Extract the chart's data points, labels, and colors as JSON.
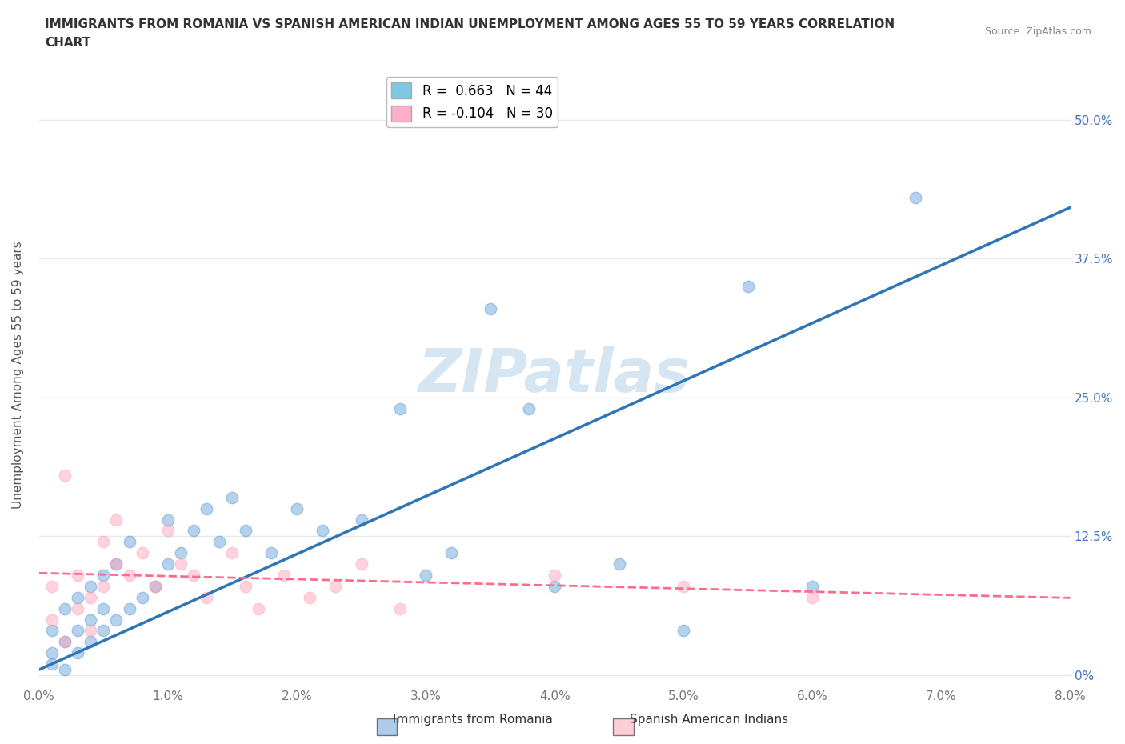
{
  "title_line1": "IMMIGRANTS FROM ROMANIA VS SPANISH AMERICAN INDIAN UNEMPLOYMENT AMONG AGES 55 TO 59 YEARS CORRELATION",
  "title_line2": "CHART",
  "source": "Source: ZipAtlas.com",
  "ylabel": "Unemployment Among Ages 55 to 59 years",
  "ytick_labels_right": [
    "0%",
    "12.5%",
    "25.0%",
    "37.5%",
    "50.0%"
  ],
  "ytick_values": [
    0.0,
    0.125,
    0.25,
    0.375,
    0.5
  ],
  "xlim": [
    0.0,
    0.08
  ],
  "ylim": [
    -0.01,
    0.55
  ],
  "watermark": "ZIPatlas",
  "legend_entries": [
    {
      "label": "R =  0.663   N = 44",
      "color": "#7ec8e3"
    },
    {
      "label": "R = -0.104   N = 30",
      "color": "#ffaec9"
    }
  ],
  "blue_x": [
    0.001,
    0.001,
    0.001,
    0.002,
    0.002,
    0.002,
    0.003,
    0.003,
    0.003,
    0.004,
    0.004,
    0.004,
    0.005,
    0.005,
    0.005,
    0.006,
    0.006,
    0.007,
    0.007,
    0.008,
    0.009,
    0.01,
    0.01,
    0.011,
    0.012,
    0.013,
    0.014,
    0.015,
    0.016,
    0.018,
    0.02,
    0.022,
    0.025,
    0.028,
    0.03,
    0.032,
    0.035,
    0.038,
    0.04,
    0.045,
    0.05,
    0.055,
    0.06,
    0.068
  ],
  "blue_y": [
    0.02,
    0.04,
    0.01,
    0.03,
    0.06,
    0.005,
    0.02,
    0.04,
    0.07,
    0.03,
    0.05,
    0.08,
    0.04,
    0.06,
    0.09,
    0.05,
    0.1,
    0.06,
    0.12,
    0.07,
    0.08,
    0.1,
    0.14,
    0.11,
    0.13,
    0.15,
    0.12,
    0.16,
    0.13,
    0.11,
    0.15,
    0.13,
    0.14,
    0.24,
    0.09,
    0.11,
    0.33,
    0.24,
    0.08,
    0.1,
    0.04,
    0.35,
    0.08,
    0.43
  ],
  "pink_x": [
    0.001,
    0.001,
    0.002,
    0.002,
    0.003,
    0.003,
    0.004,
    0.004,
    0.005,
    0.005,
    0.006,
    0.006,
    0.007,
    0.008,
    0.009,
    0.01,
    0.011,
    0.012,
    0.013,
    0.015,
    0.016,
    0.017,
    0.019,
    0.021,
    0.023,
    0.025,
    0.028,
    0.04,
    0.05,
    0.06
  ],
  "pink_y": [
    0.05,
    0.08,
    0.03,
    0.18,
    0.06,
    0.09,
    0.04,
    0.07,
    0.12,
    0.08,
    0.1,
    0.14,
    0.09,
    0.11,
    0.08,
    0.13,
    0.1,
    0.09,
    0.07,
    0.11,
    0.08,
    0.06,
    0.09,
    0.07,
    0.08,
    0.1,
    0.06,
    0.09,
    0.08,
    0.07
  ],
  "blue_trend_slope": 5.2,
  "blue_trend_intercept": 0.005,
  "pink_trend_slope": -0.28,
  "pink_trend_intercept": 0.092,
  "blue_color": "#5b9bd5",
  "pink_color": "#ff9eb5",
  "blue_trend_color": "#2e75b6",
  "pink_trend_color": "#ff6b8a",
  "scatter_size": 110,
  "scatter_alpha": 0.45,
  "grid_color": "#e8e8e8",
  "background_color": "#ffffff",
  "title_fontsize": 11,
  "axis_fontsize": 11,
  "tick_fontsize": 11,
  "legend_fontsize": 12
}
